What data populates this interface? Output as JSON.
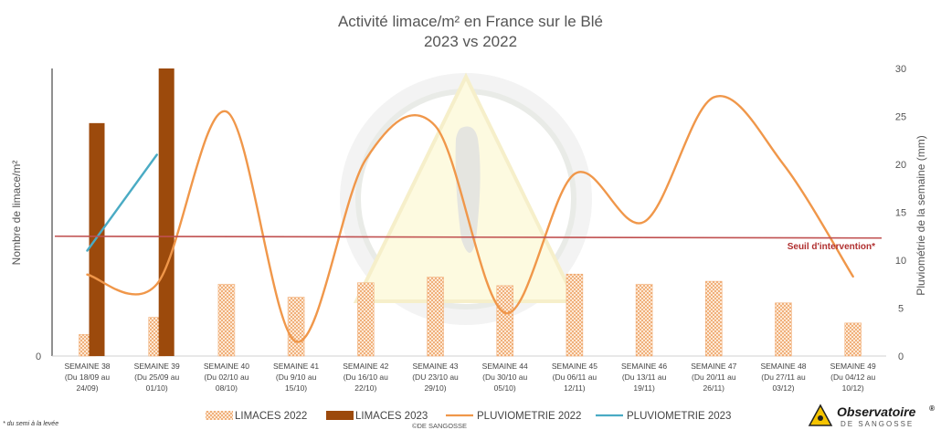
{
  "chart_data": {
    "type": "bar",
    "title": "Activité limace/m² en France sur le Blé",
    "subtitle": "2023 vs 2022",
    "ylabel": "Nombre de limace/m²",
    "ylabel_right": "Pluviométrie de la semaine (mm)",
    "y_left_ticks": [
      "0"
    ],
    "ylim_right": [
      0,
      30
    ],
    "y_right_ticks": [
      0,
      5,
      10,
      15,
      20,
      25,
      30
    ],
    "categories": [
      [
        "SEMAINE 38",
        "(Du 18/09 au",
        "24/09)"
      ],
      [
        "SEMAINE 39",
        "(Du 25/09 au",
        "01/10)"
      ],
      [
        "SEMAINE 40",
        "(Du 02/10 au",
        "08/10)"
      ],
      [
        "SEMAINE 41",
        "(Du 9/10 au",
        "15/10)"
      ],
      [
        "SEMAINE 42",
        "(Du 16/10 au",
        "22/10)"
      ],
      [
        "SEMAINE 43",
        "(DU 23/10 au",
        "29/10)"
      ],
      [
        "SEMAINE 44",
        "(Du 30/10 au",
        "05/10)"
      ],
      [
        "SEMAINE 45",
        "(Du 06/11 au",
        "12/11)"
      ],
      [
        "SEMAINE 46",
        "(Du 13/11 au",
        "19/11)"
      ],
      [
        "SEMAINE 47",
        "(Du 20/11 au",
        "26/11)"
      ],
      [
        "SEMAINE 48",
        "(Du 27/11 au",
        "03/12)"
      ],
      [
        "SEMAINE 49",
        "(Du 04/12 au",
        "10/12)"
      ]
    ],
    "series": [
      {
        "name": "LIMACES 2022",
        "kind": "bar",
        "axis": "left",
        "pattern": "dotted",
        "color": "#f0a060",
        "values": [
          0.075,
          0.135,
          0.25,
          0.205,
          0.255,
          0.275,
          0.245,
          0.285,
          0.25,
          0.26,
          0.185,
          0.115
        ]
      },
      {
        "name": "LIMACES 2023",
        "kind": "bar",
        "axis": "left",
        "color": "#9c4a0c",
        "values": [
          0.81,
          1.0,
          null,
          null,
          null,
          null,
          null,
          null,
          null,
          null,
          null,
          null
        ]
      },
      {
        "name": "PLUVIOMETRIE 2022",
        "kind": "line",
        "axis": "right",
        "smooth": true,
        "color": "#f0974a",
        "values": [
          8.5,
          7.5,
          25.5,
          1.5,
          20.5,
          24.0,
          4.5,
          19.0,
          14.0,
          27.0,
          20.0,
          8.3
        ]
      },
      {
        "name": "PLUVIOMETRIE 2023",
        "kind": "line",
        "axis": "right",
        "smooth": false,
        "color": "#4aabc4",
        "values": [
          11.0,
          21.0,
          null,
          null,
          null,
          null,
          null,
          null,
          null,
          null,
          null,
          null
        ]
      }
    ],
    "threshold": {
      "label": "Seuil d'intervention*",
      "axis": "right",
      "value": 12.5,
      "color": "#c05050"
    },
    "legend_position": "bottom",
    "grid": false
  },
  "footnote": "* du semi à la levée",
  "copyright": "©DE SANGOSSE",
  "logo": {
    "name": "Observatoire",
    "mark": "®",
    "sub": "DE SANGOSSE"
  },
  "watermark_icon": "slug-warning-icon"
}
